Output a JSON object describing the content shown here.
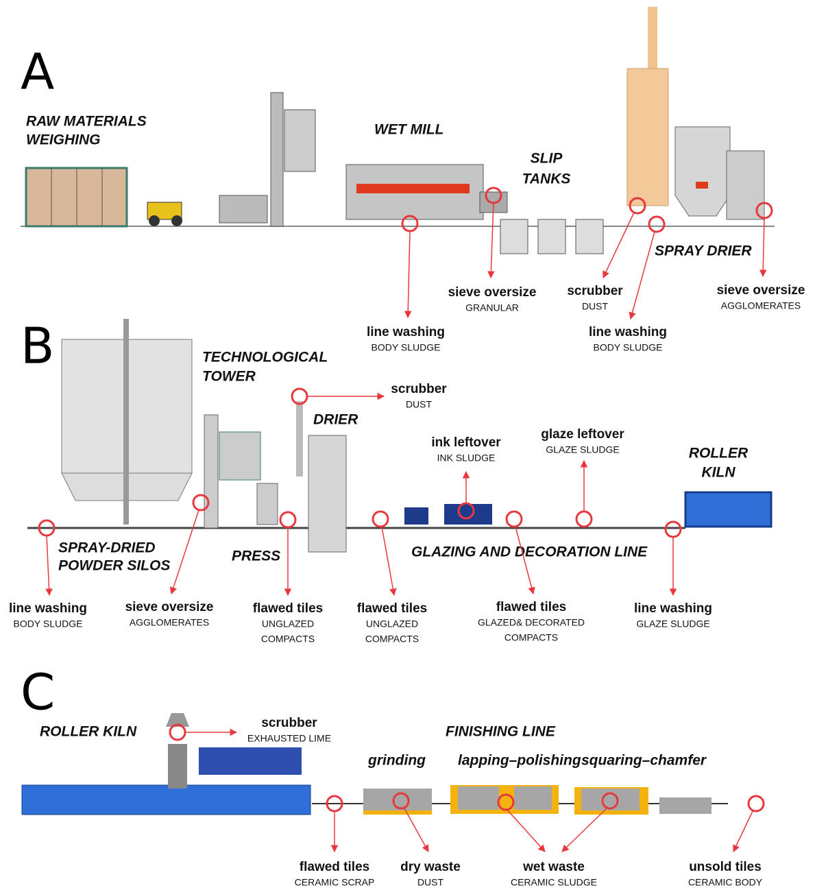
{
  "panels": [
    {
      "letter": "A",
      "stages": [
        [
          "RAW MATERIALS",
          "WEIGHING"
        ],
        [
          "WET MILL"
        ],
        [
          "SLIP",
          "TANKS"
        ],
        [
          "SPRAY DRIER"
        ]
      ],
      "wastes": [
        {
          "name": "line washing",
          "type": [
            "BODY SLUDGE"
          ]
        },
        {
          "name": "sieve oversize",
          "type": [
            "GRANULAR"
          ]
        },
        {
          "name": "scrubber",
          "type": [
            "DUST"
          ]
        },
        {
          "name": "line washing",
          "type": [
            "BODY SLUDGE"
          ]
        },
        {
          "name": "sieve oversize",
          "type": [
            "AGGLOMERATES"
          ]
        }
      ]
    },
    {
      "letter": "B",
      "stages": [
        [
          "TECHNOLOGICAL",
          "TOWER"
        ],
        [
          "DRIER"
        ],
        [
          "ROLLER",
          "KILN"
        ],
        [
          "SPRAY-DRIED",
          "POWDER SILOS"
        ],
        [
          "PRESS"
        ],
        [
          "GLAZING AND DECORATION LINE"
        ]
      ],
      "wastes": [
        {
          "name": "scrubber",
          "type": [
            "DUST"
          ]
        },
        {
          "name": "ink leftover",
          "type": [
            "INK SLUDGE"
          ]
        },
        {
          "name": "glaze leftover",
          "type": [
            "GLAZE SLUDGE"
          ]
        },
        {
          "name": "line washing",
          "type": [
            "BODY SLUDGE"
          ]
        },
        {
          "name": "sieve oversize",
          "type": [
            "AGGLOMERATES"
          ]
        },
        {
          "name": "flawed tiles",
          "type": [
            "UNGLAZED",
            "COMPACTS"
          ]
        },
        {
          "name": "flawed tiles",
          "type": [
            "UNGLAZED",
            "COMPACTS"
          ]
        },
        {
          "name": "flawed tiles",
          "type": [
            "GLAZED& DECORATED",
            "COMPACTS"
          ]
        },
        {
          "name": "line washing",
          "type": [
            "GLAZE SLUDGE"
          ]
        }
      ]
    },
    {
      "letter": "C",
      "stages": [
        [
          "ROLLER KILN"
        ],
        [
          "FINISHING LINE"
        ],
        [
          "grinding"
        ],
        [
          "lapping–polishing"
        ],
        [
          "squaring–chamfer"
        ]
      ],
      "wastes": [
        {
          "name": "scrubber",
          "type": [
            "EXHAUSTED LIME"
          ]
        },
        {
          "name": "flawed tiles",
          "type": [
            "CERAMIC SCRAP"
          ]
        },
        {
          "name": "dry waste",
          "type": [
            "DUST"
          ]
        },
        {
          "name": "wet waste",
          "type": [
            "CERAMIC SLUDGE"
          ]
        },
        {
          "name": "unsold tiles",
          "type": [
            "CERAMIC BODY"
          ]
        }
      ]
    }
  ]
}
